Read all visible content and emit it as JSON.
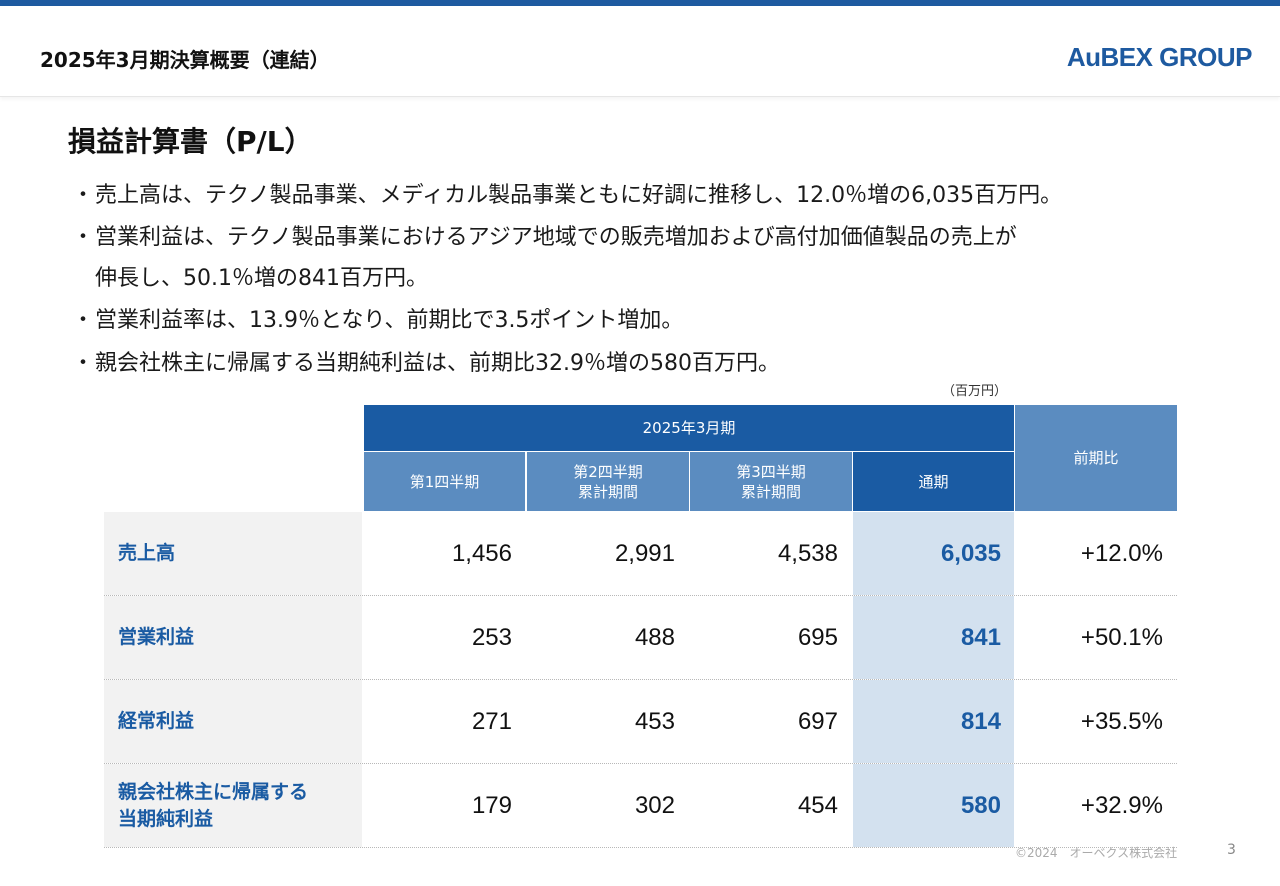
{
  "header": {
    "title": "2025年3月期決算概要（連結）",
    "logo": "AuBEX GROUP"
  },
  "section": {
    "title": "損益計算書（P/L）"
  },
  "bullets": [
    "売上高は、テクノ製品事業、メディカル製品事業ともに好調に推移し、12.0％増の6,035百万円。",
    "営業利益は、テクノ製品事業におけるアジア地域での販売増加および高付加価値製品の売上が",
    "伸長し、50.1％増の841百万円。",
    "営業利益率は、13.9％となり、前期比で3.5ポイント増加。",
    "親会社株主に帰属する当期純利益は、前期比32.9％増の580百万円。"
  ],
  "bullet_mark": "・",
  "table": {
    "unit": "（百万円）",
    "period": "2025年3月期",
    "yoy_header": "前期比",
    "columns": [
      {
        "line1": "第1四半期",
        "line2": ""
      },
      {
        "line1": "第2四半期",
        "line2": "累計期間"
      },
      {
        "line1": "第3四半期",
        "line2": "累計期間"
      },
      {
        "line1": "通期",
        "line2": ""
      }
    ],
    "rows": [
      {
        "line1": "売上高",
        "line2": "",
        "q1": "1,456",
        "q2": "2,991",
        "q3": "4,538",
        "full": "6,035",
        "yoy": "+12.0%"
      },
      {
        "line1": "営業利益",
        "line2": "",
        "q1": "253",
        "q2": "488",
        "q3": "695",
        "full": "841",
        "yoy": "+50.1%"
      },
      {
        "line1": "経常利益",
        "line2": "",
        "q1": "271",
        "q2": "453",
        "q3": "697",
        "full": "814",
        "yoy": "+35.5%"
      },
      {
        "line1": "親会社株主に帰属する",
        "line2": "当期純利益",
        "q1": "179",
        "q2": "302",
        "q3": "454",
        "full": "580",
        "yoy": "+32.9%"
      }
    ]
  },
  "footer": {
    "copyright": "©2024　オーベクス株式会社",
    "page": "3"
  },
  "colors": {
    "accent": "#1e5aa0",
    "header_dark": "#1a5ba3",
    "header_light": "#5b8cc0",
    "highlight": "#d3e1ef"
  }
}
